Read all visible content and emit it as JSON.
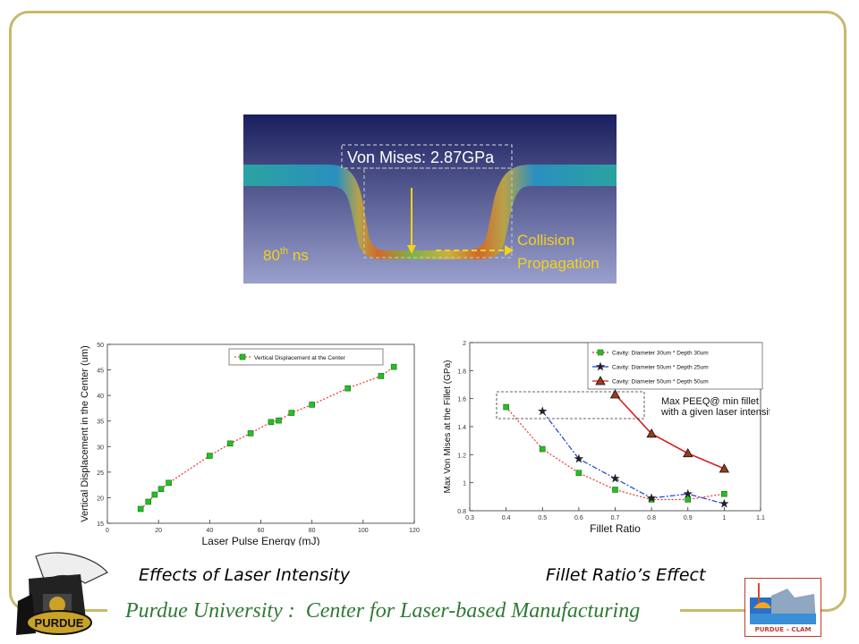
{
  "simulation": {
    "label_stress": "Von Mises: 2.87GPa",
    "label_time_base": "80",
    "label_time_sup": "th",
    "label_time_unit": " ns",
    "label_prop_1": "Collision",
    "label_prop_2": "Propagation"
  },
  "captions": {
    "left": "Effects of Laser Intensity",
    "right": "Fillet Ratio’s Effect"
  },
  "footer": {
    "text": "Purdue University :  Center for Laser-based Manufacturing",
    "logo_right_label": "PURDUE – CLAM",
    "logo_left_label": "PURDUE"
  },
  "chart_data": [
    {
      "type": "line",
      "title": "",
      "xlabel": "Laser Pulse Energy (mJ)",
      "ylabel": "Vertical Displacement in the Center (um)",
      "xlim": [
        0,
        120
      ],
      "ylim": [
        15,
        50
      ],
      "xticks": [
        "0",
        "20",
        "40",
        "60",
        "80",
        "100",
        "120"
      ],
      "yticks": [
        "15",
        "20",
        "25",
        "30",
        "35",
        "40",
        "45",
        "50"
      ],
      "legend_position": "top-right",
      "series": [
        {
          "name": "Vertical Displacement at the Center",
          "color": "#e8352a",
          "marker_color": "#22c022",
          "x": [
            13,
            16,
            18.5,
            21,
            24,
            40,
            48,
            56,
            64,
            67,
            72,
            80,
            94,
            107,
            112
          ],
          "y": [
            17.8,
            19.2,
            20.6,
            21.7,
            22.9,
            28.2,
            30.6,
            32.6,
            34.8,
            35.1,
            36.6,
            38.2,
            41.4,
            43.8,
            45.6
          ]
        }
      ]
    },
    {
      "type": "line",
      "title": "",
      "xlabel": "Fillet Ratio",
      "ylabel": "Max Von Mises at the Fillet (GPa)",
      "xlim": [
        0.3,
        1.1
      ],
      "ylim": [
        0.8,
        2
      ],
      "xticks": [
        "0.3",
        "0.4",
        "0.5",
        "0.6",
        "0.7",
        "0.8",
        "0.9",
        "1",
        "1.1"
      ],
      "yticks": [
        "0.8",
        "1",
        "1.2",
        "1.4",
        "1.6",
        "1.8",
        "2"
      ],
      "legend_position": "top-right",
      "annotation": [
        "Max PEEQ@ min fillet",
        "with a given laser intensity"
      ],
      "series": [
        {
          "name": "Cavity: Diameter 30um * Depth 30um",
          "color": "#e8352a",
          "marker": "square",
          "marker_color": "#22c022",
          "x": [
            0.4,
            0.5,
            0.6,
            0.7,
            0.8,
            0.9,
            1.0
          ],
          "y": [
            1.54,
            1.24,
            1.07,
            0.95,
            0.88,
            0.88,
            0.92
          ]
        },
        {
          "name": "Cavity: Diameter 50um * Depth 25um",
          "color": "#1a3fd6",
          "marker": "star",
          "marker_color": "#222222",
          "x": [
            0.5,
            0.6,
            0.7,
            0.8,
            0.9,
            1.0
          ],
          "y": [
            1.51,
            1.17,
            1.03,
            0.89,
            0.92,
            0.85
          ]
        },
        {
          "name": "Cavity: Diameter 50um * Depth 50um",
          "color": "#d81f1f",
          "marker": "triangle",
          "marker_color": "#9a3b1c",
          "x": [
            0.7,
            0.8,
            0.9,
            1.0
          ],
          "y": [
            1.63,
            1.35,
            1.21,
            1.1
          ]
        }
      ]
    }
  ]
}
